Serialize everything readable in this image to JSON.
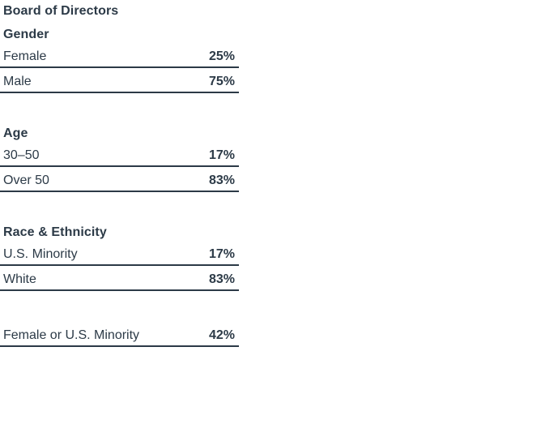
{
  "page": {
    "background_color": "#ffffff",
    "text_color": "#2c3a47",
    "rule_color": "#2c3a47"
  },
  "board": {
    "title": "Board of Directors",
    "sections": [
      {
        "heading": "Gender",
        "rows": [
          {
            "label": "Female",
            "value": "25%"
          },
          {
            "label": "Male",
            "value": "75%"
          }
        ]
      },
      {
        "heading": "Age",
        "rows": [
          {
            "label": "30–50",
            "value": "17%"
          },
          {
            "label": "Over 50",
            "value": "83%"
          }
        ]
      },
      {
        "heading": "Race & Ethnicity",
        "rows": [
          {
            "label": "U.S. Minority",
            "value": "17%"
          },
          {
            "label": "White",
            "value": "83%"
          }
        ]
      },
      {
        "heading": "",
        "rows": [
          {
            "label": "Female or U.S. Minority",
            "value": "42%"
          }
        ]
      }
    ]
  },
  "chart_data": {
    "type": "table",
    "title": "Board of Directors",
    "sections": [
      {
        "heading": "Gender",
        "categories": [
          "Female",
          "Male"
        ],
        "values_percent": [
          25,
          75
        ]
      },
      {
        "heading": "Age",
        "categories": [
          "30–50",
          "Over 50"
        ],
        "values_percent": [
          17,
          83
        ]
      },
      {
        "heading": "Race & Ethnicity",
        "categories": [
          "U.S. Minority",
          "White"
        ],
        "values_percent": [
          17,
          83
        ]
      },
      {
        "heading": "",
        "categories": [
          "Female or U.S. Minority"
        ],
        "values_percent": [
          42
        ]
      }
    ]
  }
}
